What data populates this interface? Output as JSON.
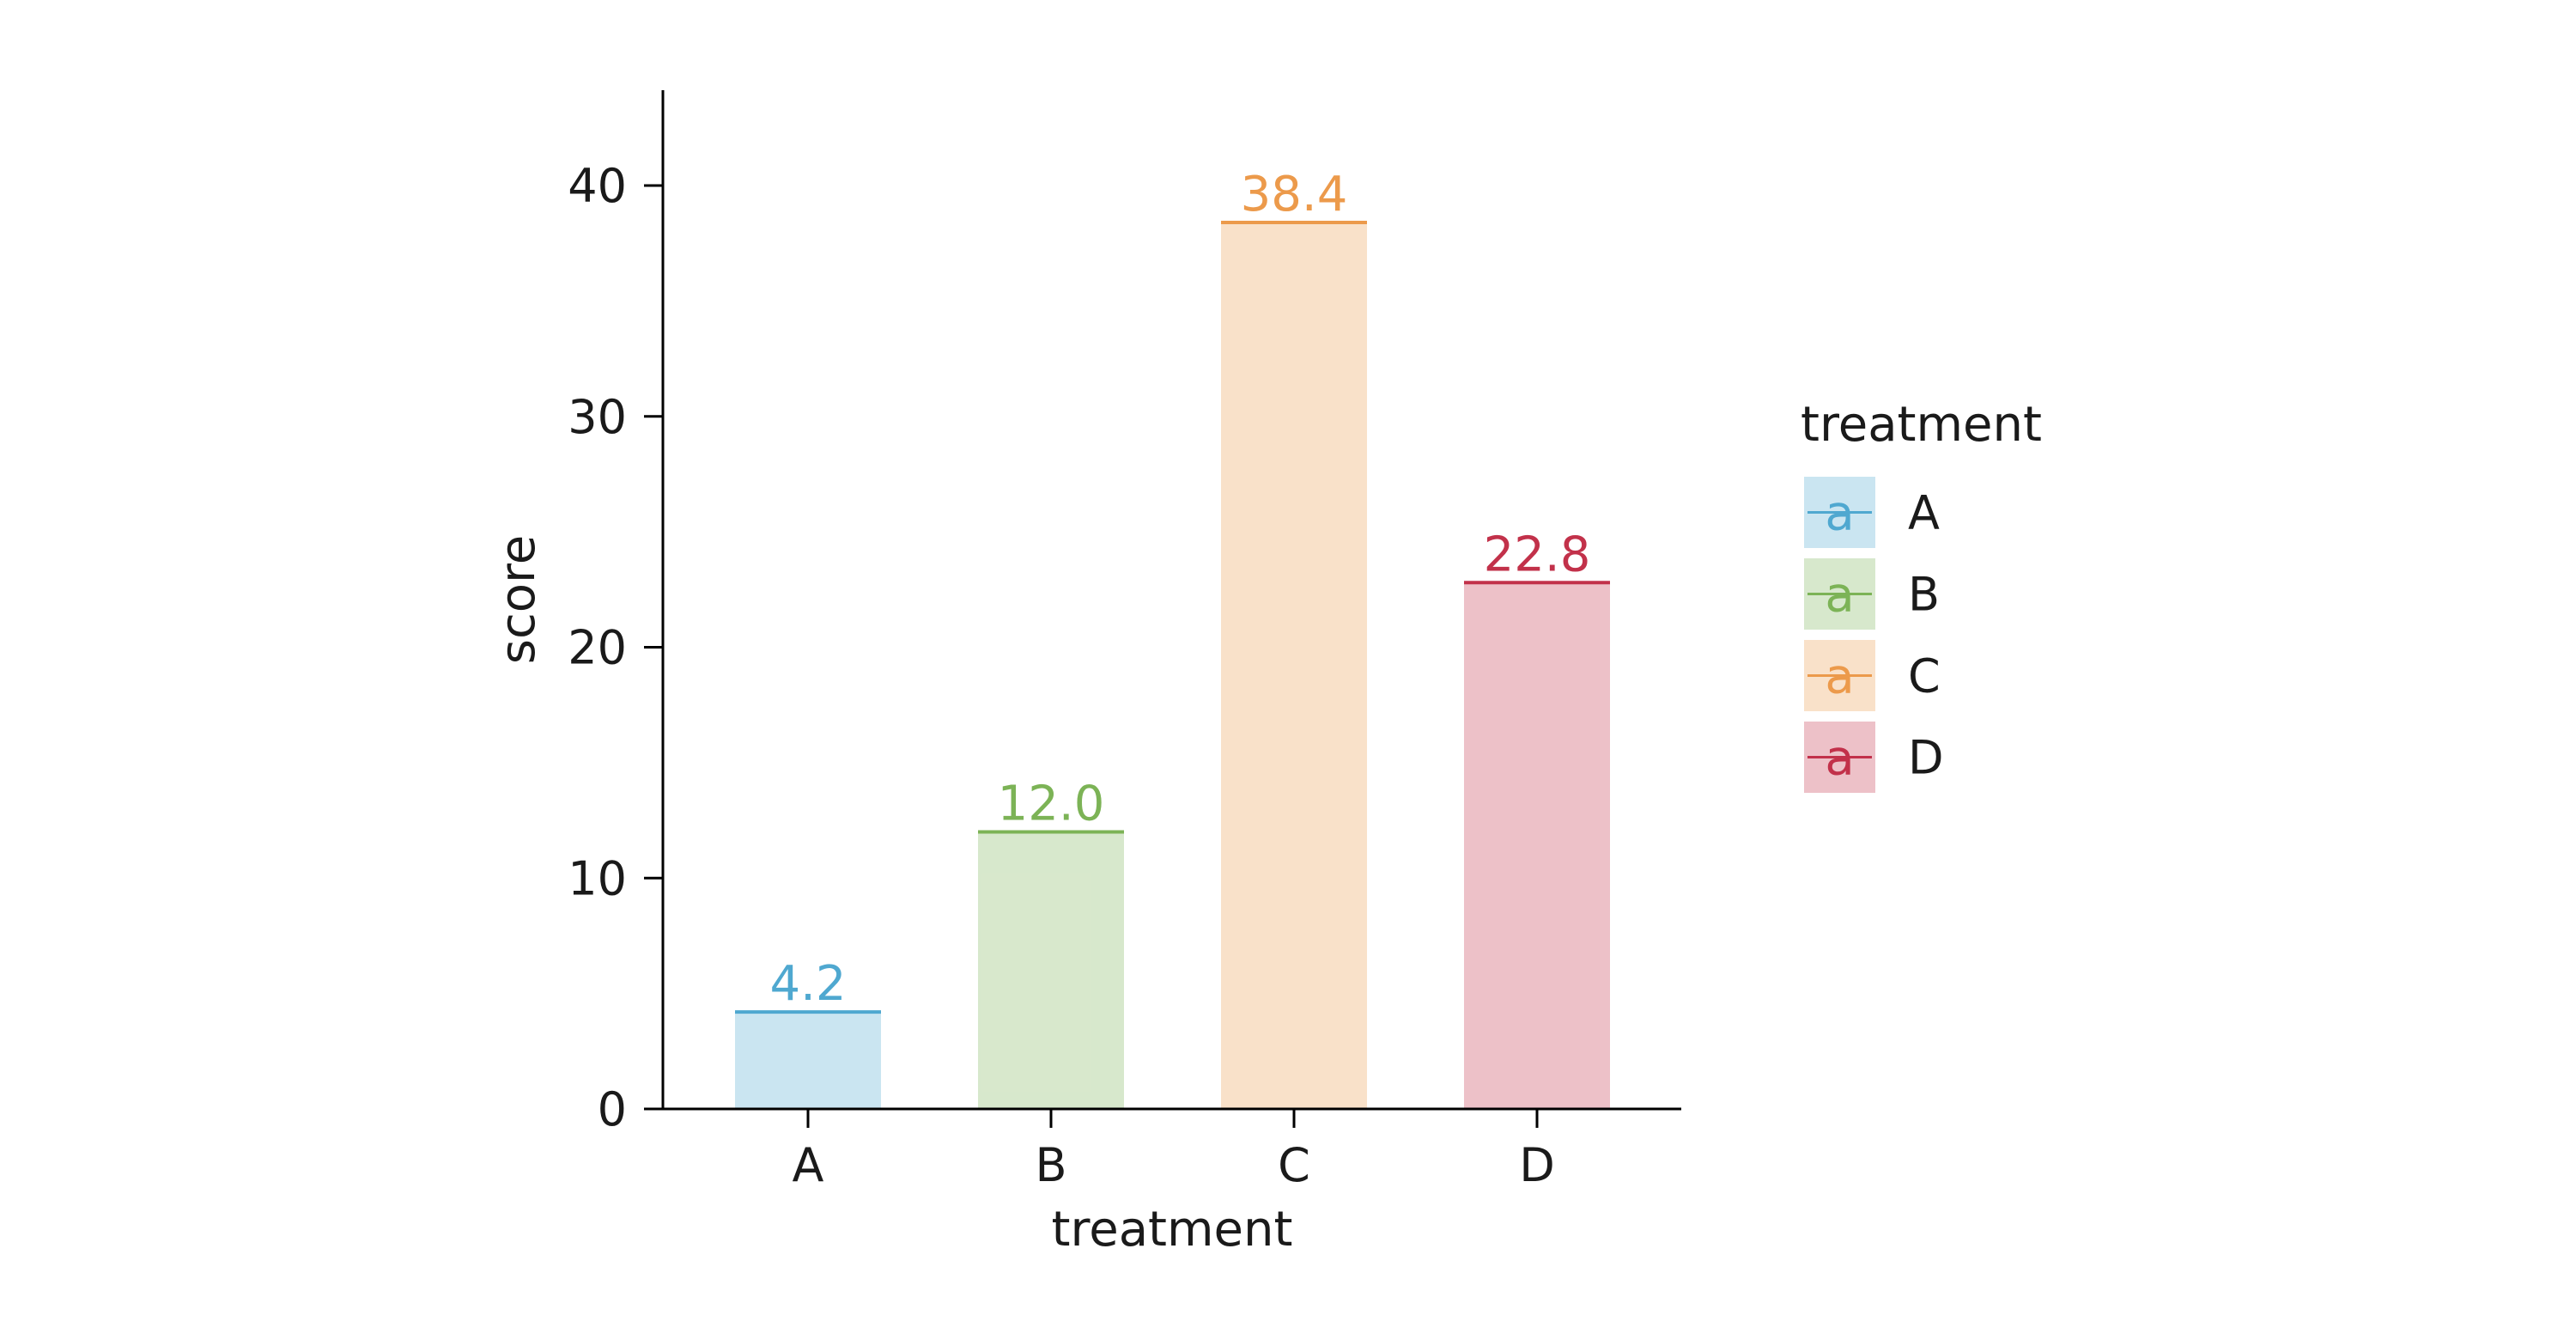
{
  "chart_data": {
    "type": "bar",
    "categories": [
      "A",
      "B",
      "C",
      "D"
    ],
    "values": [
      4.2,
      12.0,
      38.4,
      22.8
    ],
    "value_labels": [
      "4.2",
      "12.0",
      "38.4",
      "22.8"
    ],
    "colors": [
      "#4fa8d0",
      "#7cb356",
      "#ec9a4b",
      "#c2314a"
    ],
    "fill_opacity": 0.3,
    "xlabel": "treatment",
    "ylabel": "score",
    "ylim": [
      0,
      44
    ],
    "yticks": [
      0,
      10,
      20,
      30,
      40
    ],
    "ytick_labels": [
      "0",
      "10",
      "20",
      "30",
      "40"
    ],
    "grid": false,
    "legend": {
      "title": "treatment",
      "placement": "right",
      "glyph": "a",
      "entries": [
        "A",
        "B",
        "C",
        "D"
      ]
    }
  }
}
